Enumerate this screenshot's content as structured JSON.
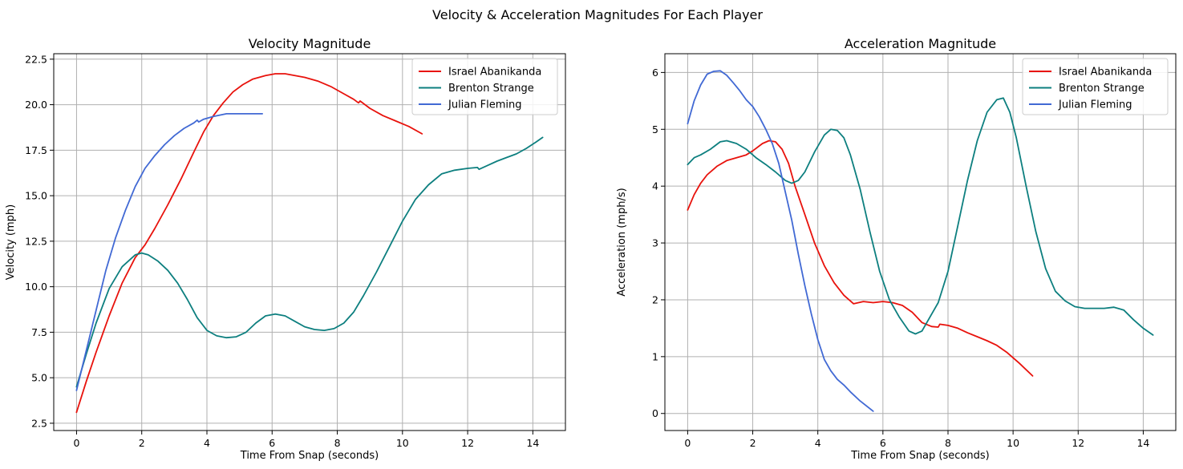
{
  "figure": {
    "suptitle": "Velocity & Acceleration Magnitudes For Each Player"
  },
  "colors": {
    "Israel Abanikanda": "#e8120c",
    "Brenton Strange": "#0d7f7f",
    "Julian Fleming": "#4169d4"
  },
  "chart_data": [
    {
      "type": "line",
      "title": "Velocity Magnitude",
      "xlabel": "Time From Snap (seconds)",
      "ylabel": "Velocity (mph)",
      "xlim": [
        -0.7,
        15.0
      ],
      "ylim": [
        2.1,
        22.8
      ],
      "xticks": [
        0,
        2,
        4,
        6,
        8,
        10,
        12,
        14
      ],
      "yticks": [
        2.5,
        5.0,
        7.5,
        10.0,
        12.5,
        15.0,
        17.5,
        20.0,
        22.5
      ],
      "ytick_labels": [
        "2.5",
        "5.0",
        "7.5",
        "10.0",
        "12.5",
        "15.0",
        "17.5",
        "20.0",
        "22.5"
      ],
      "grid": true,
      "legend": "top-right",
      "series": [
        {
          "name": "Israel Abanikanda",
          "x": [
            0,
            0.3,
            0.6,
            1.0,
            1.4,
            1.8,
            2.1,
            2.4,
            2.8,
            3.2,
            3.6,
            3.9,
            4.2,
            4.5,
            4.8,
            5.1,
            5.4,
            5.8,
            6.1,
            6.4,
            6.7,
            7.0,
            7.4,
            7.8,
            8.2,
            8.5,
            8.65,
            8.7,
            9.0,
            9.4,
            9.8,
            10.2,
            10.6
          ],
          "y": [
            3.1,
            4.8,
            6.4,
            8.4,
            10.2,
            11.6,
            12.3,
            13.2,
            14.5,
            15.9,
            17.4,
            18.5,
            19.4,
            20.1,
            20.7,
            21.1,
            21.4,
            21.6,
            21.7,
            21.7,
            21.6,
            21.5,
            21.3,
            21.0,
            20.6,
            20.3,
            20.1,
            20.2,
            19.8,
            19.4,
            19.1,
            18.8,
            18.4
          ]
        },
        {
          "name": "Brenton Strange",
          "x": [
            0,
            0.3,
            0.6,
            1.0,
            1.4,
            1.8,
            2.0,
            2.2,
            2.5,
            2.8,
            3.1,
            3.4,
            3.7,
            4.0,
            4.3,
            4.6,
            4.9,
            5.2,
            5.5,
            5.8,
            6.1,
            6.4,
            6.7,
            7.0,
            7.3,
            7.6,
            7.9,
            8.2,
            8.5,
            8.8,
            9.2,
            9.6,
            10.0,
            10.4,
            10.8,
            11.2,
            11.6,
            12.0,
            12.3,
            12.35,
            12.6,
            12.9,
            13.2,
            13.5,
            13.8,
            14.1,
            14.3
          ],
          "y": [
            4.5,
            6.3,
            8.0,
            9.9,
            11.1,
            11.75,
            11.85,
            11.75,
            11.4,
            10.9,
            10.2,
            9.3,
            8.3,
            7.6,
            7.3,
            7.2,
            7.25,
            7.5,
            8.0,
            8.4,
            8.5,
            8.4,
            8.1,
            7.8,
            7.65,
            7.6,
            7.7,
            8.0,
            8.6,
            9.5,
            10.8,
            12.2,
            13.6,
            14.8,
            15.6,
            16.2,
            16.4,
            16.5,
            16.55,
            16.45,
            16.65,
            16.9,
            17.1,
            17.3,
            17.6,
            17.95,
            18.2
          ]
        },
        {
          "name": "Julian Fleming",
          "x": [
            0,
            0.3,
            0.6,
            0.9,
            1.2,
            1.5,
            1.8,
            2.1,
            2.4,
            2.7,
            3.0,
            3.3,
            3.6,
            3.7,
            3.75,
            3.9,
            4.2,
            4.6,
            5.0,
            5.4,
            5.7
          ],
          "y": [
            4.3,
            6.5,
            8.7,
            10.9,
            12.7,
            14.2,
            15.5,
            16.5,
            17.2,
            17.8,
            18.3,
            18.7,
            19.0,
            19.15,
            19.05,
            19.2,
            19.35,
            19.5,
            19.5,
            19.5,
            19.5
          ]
        }
      ]
    },
    {
      "type": "line",
      "title": "Acceleration Magnitude",
      "xlabel": "Time From Snap (seconds)",
      "ylabel": "Acceleration (mph/s)",
      "xlim": [
        -0.7,
        15.0
      ],
      "ylim": [
        -0.3,
        6.33
      ],
      "xticks": [
        0,
        2,
        4,
        6,
        8,
        10,
        12,
        14
      ],
      "yticks": [
        0,
        1,
        2,
        3,
        4,
        5,
        6
      ],
      "ytick_labels": [
        "0",
        "1",
        "2",
        "3",
        "4",
        "5",
        "6"
      ],
      "grid": true,
      "legend": "top-right",
      "series": [
        {
          "name": "Israel Abanikanda",
          "x": [
            0,
            0.2,
            0.4,
            0.6,
            0.9,
            1.2,
            1.5,
            1.8,
            2.0,
            2.3,
            2.5,
            2.7,
            2.9,
            3.1,
            3.3,
            3.6,
            3.9,
            4.2,
            4.5,
            4.8,
            5.1,
            5.4,
            5.7,
            6.0,
            6.3,
            6.6,
            6.9,
            7.2,
            7.5,
            7.7,
            7.75,
            8.0,
            8.3,
            8.6,
            8.9,
            9.2,
            9.5,
            9.8,
            10.2,
            10.6
          ],
          "y": [
            3.58,
            3.85,
            4.05,
            4.2,
            4.35,
            4.45,
            4.5,
            4.55,
            4.62,
            4.75,
            4.8,
            4.78,
            4.65,
            4.4,
            4.0,
            3.5,
            3.0,
            2.6,
            2.3,
            2.08,
            1.93,
            1.97,
            1.95,
            1.97,
            1.95,
            1.9,
            1.78,
            1.6,
            1.53,
            1.52,
            1.57,
            1.55,
            1.5,
            1.42,
            1.35,
            1.28,
            1.2,
            1.08,
            0.88,
            0.66
          ]
        },
        {
          "name": "Brenton Strange",
          "x": [
            0,
            0.2,
            0.4,
            0.7,
            1.0,
            1.2,
            1.5,
            1.8,
            2.1,
            2.4,
            2.7,
            3.0,
            3.2,
            3.4,
            3.6,
            3.9,
            4.2,
            4.4,
            4.6,
            4.8,
            5.0,
            5.3,
            5.6,
            5.9,
            6.2,
            6.5,
            6.8,
            7.0,
            7.2,
            7.4,
            7.7,
            8.0,
            8.3,
            8.6,
            8.9,
            9.2,
            9.5,
            9.7,
            9.9,
            10.1,
            10.4,
            10.7,
            11.0,
            11.3,
            11.6,
            11.9,
            12.2,
            12.5,
            12.8,
            13.1,
            13.4,
            13.7,
            14.0,
            14.3
          ],
          "y": [
            4.38,
            4.5,
            4.55,
            4.65,
            4.78,
            4.8,
            4.75,
            4.65,
            4.5,
            4.38,
            4.25,
            4.1,
            4.05,
            4.1,
            4.25,
            4.6,
            4.9,
            5.0,
            4.98,
            4.85,
            4.55,
            3.95,
            3.2,
            2.5,
            2.0,
            1.7,
            1.45,
            1.4,
            1.45,
            1.65,
            1.95,
            2.5,
            3.3,
            4.1,
            4.8,
            5.3,
            5.52,
            5.55,
            5.3,
            4.85,
            4.0,
            3.2,
            2.55,
            2.15,
            1.98,
            1.88,
            1.85,
            1.85,
            1.85,
            1.87,
            1.82,
            1.65,
            1.5,
            1.38
          ]
        },
        {
          "name": "Julian Fleming",
          "x": [
            0,
            0.2,
            0.4,
            0.6,
            0.8,
            1.0,
            1.2,
            1.4,
            1.6,
            1.8,
            2.0,
            2.2,
            2.4,
            2.6,
            2.8,
            3.0,
            3.2,
            3.4,
            3.6,
            3.8,
            4.0,
            4.2,
            4.4,
            4.6,
            4.8,
            5.0,
            5.3,
            5.7
          ],
          "y": [
            5.1,
            5.5,
            5.78,
            5.97,
            6.02,
            6.03,
            5.95,
            5.82,
            5.68,
            5.52,
            5.4,
            5.22,
            5.0,
            4.75,
            4.4,
            3.9,
            3.4,
            2.8,
            2.25,
            1.75,
            1.3,
            0.95,
            0.75,
            0.6,
            0.5,
            0.38,
            0.22,
            0.04
          ]
        }
      ]
    }
  ]
}
